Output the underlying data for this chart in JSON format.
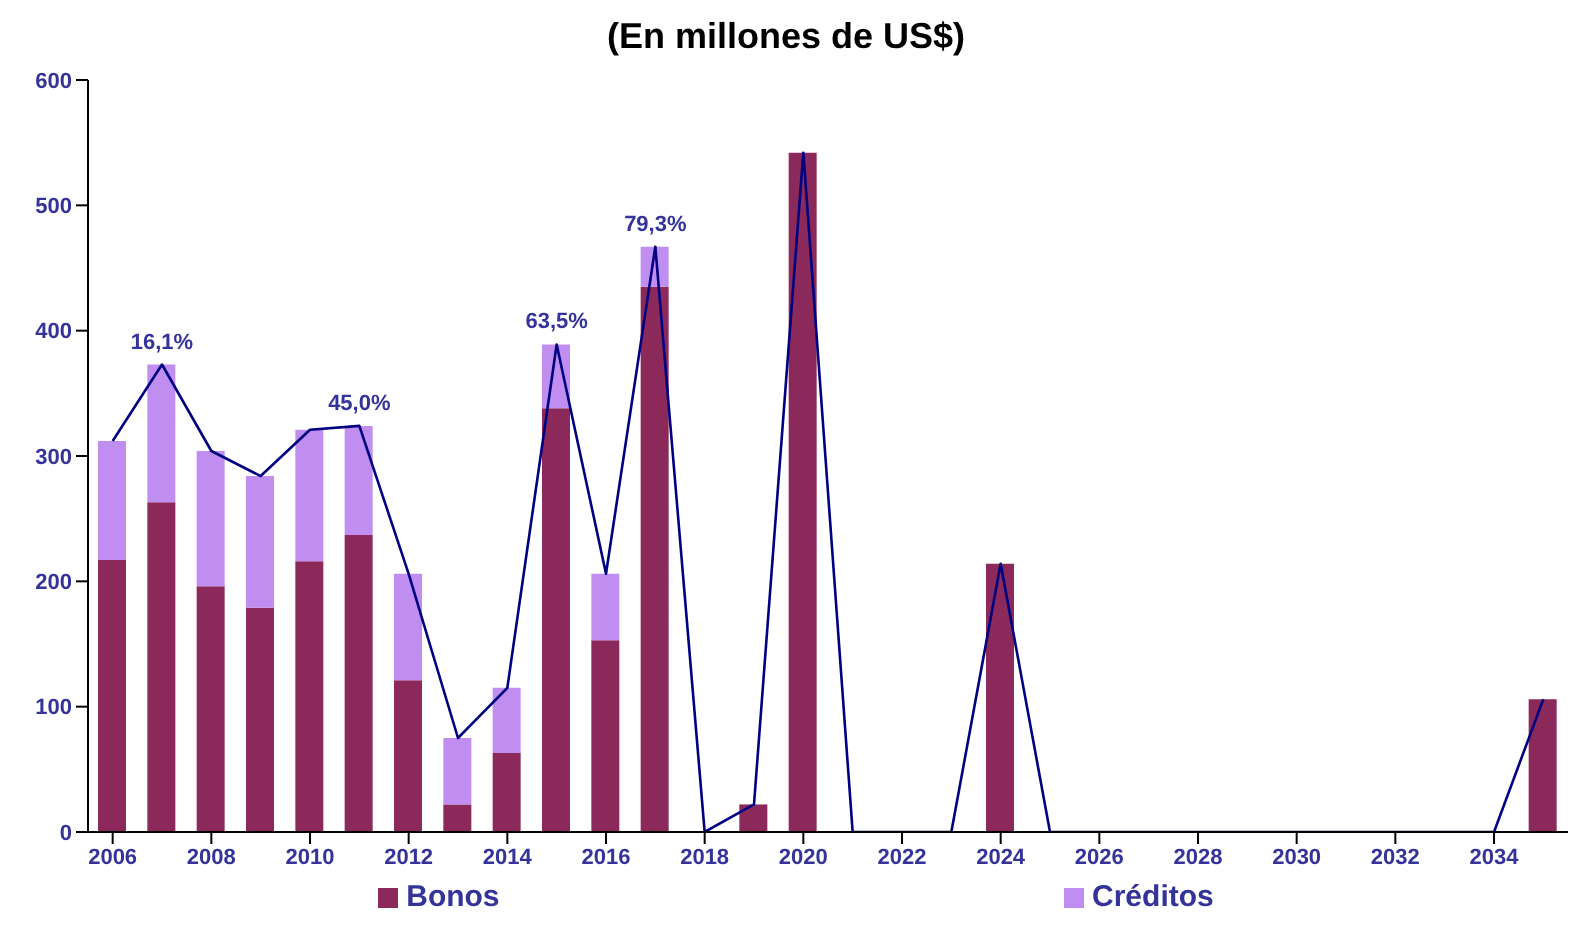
{
  "chart_data": {
    "type": "bar",
    "title": "(En millones de US$)",
    "stacked": true,
    "legend": "bottom",
    "grid": false,
    "x": [
      2006,
      2007,
      2008,
      2009,
      2010,
      2011,
      2012,
      2013,
      2014,
      2015,
      2016,
      2017,
      2018,
      2019,
      2020,
      2021,
      2022,
      2023,
      2024,
      2025,
      2026,
      2027,
      2028,
      2029,
      2030,
      2031,
      2032,
      2033,
      2034,
      2035
    ],
    "xlim": [
      2005.5,
      2035.5
    ],
    "xticks": [
      2006,
      2008,
      2010,
      2012,
      2014,
      2016,
      2018,
      2020,
      2022,
      2024,
      2026,
      2028,
      2030,
      2032,
      2034
    ],
    "ylim": [
      0,
      600
    ],
    "yticks": [
      0,
      100,
      200,
      300,
      400,
      500,
      600
    ],
    "series": [
      {
        "name": "Bonos",
        "color": "#8b2a5a",
        "values": [
          217,
          263,
          196,
          179,
          216,
          237,
          121,
          22,
          63,
          338,
          153,
          435,
          0,
          22,
          542,
          0,
          0,
          0,
          214,
          0,
          0,
          0,
          0,
          0,
          0,
          0,
          0,
          0,
          0,
          106
        ]
      },
      {
        "name": "Créditos",
        "color": "#c08ef0",
        "values": [
          95,
          110,
          108,
          105,
          105,
          87,
          85,
          53,
          52,
          51,
          53,
          32,
          null,
          null,
          null,
          null,
          null,
          null,
          null,
          null,
          null,
          null,
          null,
          null,
          null,
          null,
          null,
          null,
          null,
          null
        ]
      },
      {
        "type": "line",
        "color": "#000080",
        "values": [
          312,
          373,
          304,
          284,
          321,
          324,
          206,
          75,
          115,
          389,
          206,
          467,
          0,
          22,
          542,
          0,
          0,
          0,
          214,
          0,
          0,
          0,
          0,
          0,
          0,
          0,
          0,
          0,
          0,
          106
        ]
      }
    ],
    "annotations": [
      {
        "text": "16,1%",
        "x": 2007,
        "y": 373
      },
      {
        "text": "45,0%",
        "x": 2011,
        "y": 324
      },
      {
        "text": "63,5%",
        "x": 2015,
        "y": 389
      },
      {
        "text": "79,3%",
        "x": 2017,
        "y": 467
      }
    ]
  }
}
